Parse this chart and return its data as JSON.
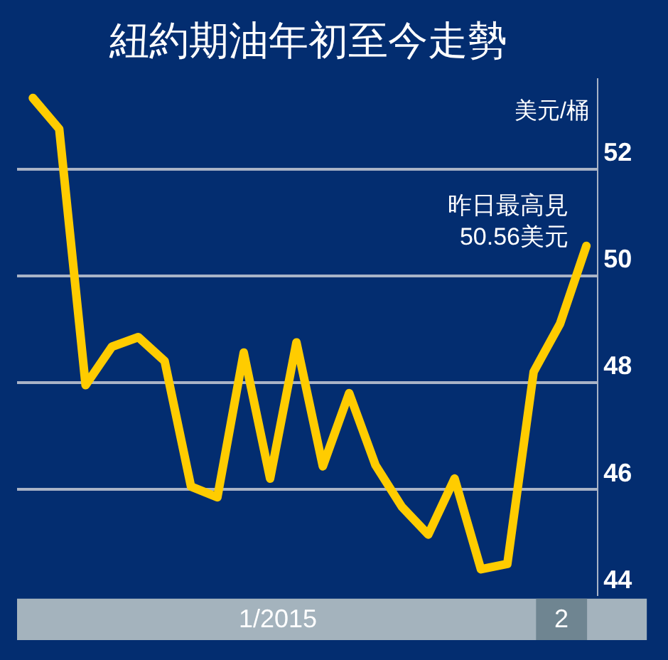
{
  "chart_data": {
    "type": "line",
    "title": "紐約期油年初至今走勢",
    "ylabel": "美元/桶",
    "categories": [
      null,
      null,
      null,
      null,
      null,
      null,
      null,
      null,
      null,
      null,
      null,
      null,
      null,
      null,
      null,
      null,
      null,
      null,
      null,
      null,
      null,
      null
    ],
    "series": [
      {
        "color": "#ffcc00",
        "values": [
          53.33,
          52.75,
          47.95,
          48.67,
          48.85,
          48.4,
          46.05,
          45.85,
          48.56,
          46.2,
          48.75,
          46.43,
          47.8,
          46.45,
          45.67,
          45.15,
          46.2,
          44.5,
          44.6,
          48.2,
          49.1,
          50.56
        ]
      }
    ],
    "ylim": [
      44,
      53.7
    ],
    "yticks": [
      44,
      46,
      48,
      50,
      52
    ],
    "grid": "y",
    "marker": "none",
    "line_style": "solid",
    "annotations": [
      "昨日最高見\n50.56美元",
      "1/2015",
      "2"
    ]
  }
}
